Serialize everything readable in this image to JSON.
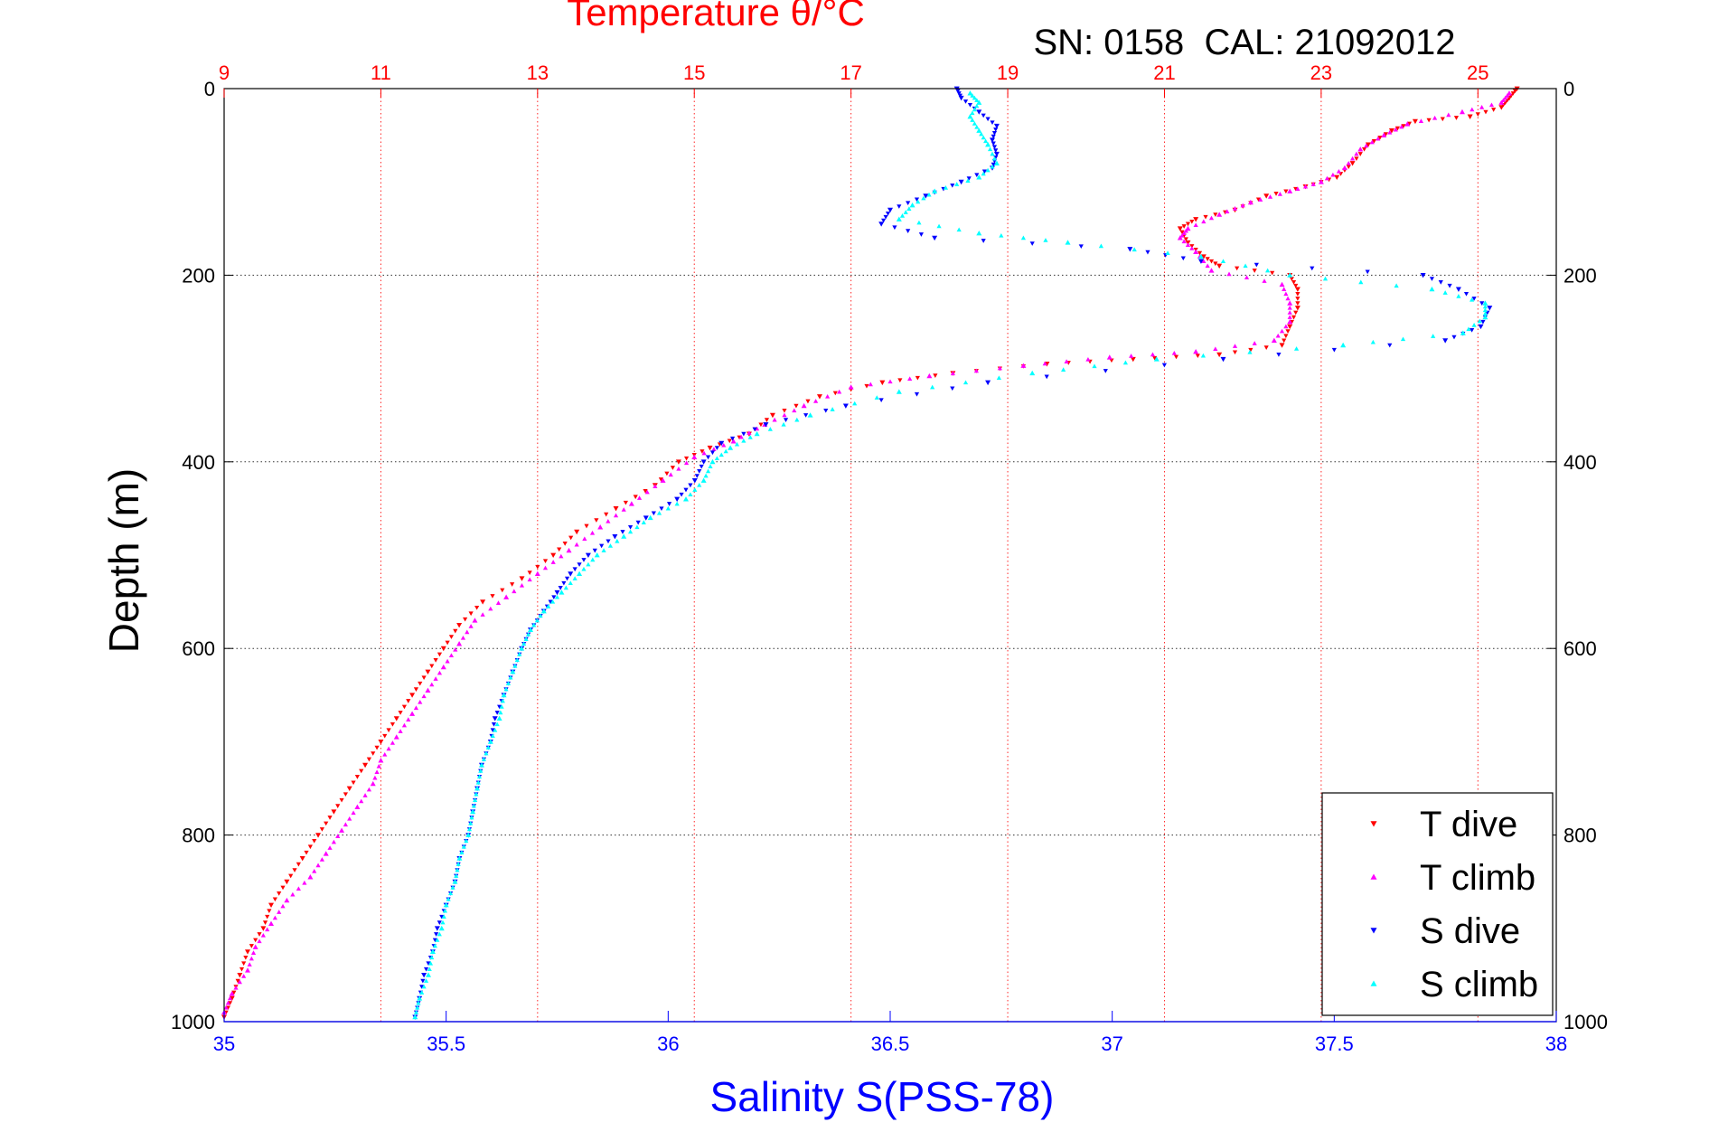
{
  "chart_data": {
    "type": "scatter",
    "title": "Temperature θ/°C",
    "subtitle": "SN: 0158  CAL: 21092012",
    "ylabel": "Depth (m)",
    "xlabel_bottom": "Salinity S(PSS-78)",
    "xlabel_top": "Temperature θ/°C",
    "ylim": [
      0,
      1000
    ],
    "y_inverted": true,
    "y_ticks": [
      0,
      200,
      400,
      600,
      800,
      1000
    ],
    "x_bottom_lim": [
      35,
      38
    ],
    "x_bottom_ticks": [
      35,
      35.5,
      36,
      36.5,
      37,
      37.5,
      38
    ],
    "x_top_lim": [
      9,
      26
    ],
    "x_top_ticks": [
      9,
      11,
      13,
      15,
      17,
      19,
      21,
      23,
      25
    ],
    "grid": true,
    "legend_position": "bottom-right",
    "colors": {
      "temperature_axis": "#ff0000",
      "salinity_axis": "#0000ff",
      "grid_horizontal": "#000000",
      "grid_vertical": "#ff0000"
    },
    "series": [
      {
        "name": "T dive",
        "axis": "temperature",
        "marker": "triangle-down",
        "color": "#ff0000",
        "points": [
          [
            25.5,
            0
          ],
          [
            25.4,
            10
          ],
          [
            25.3,
            20
          ],
          [
            24.9,
            30
          ],
          [
            24.2,
            35
          ],
          [
            23.9,
            45
          ],
          [
            23.6,
            60
          ],
          [
            23.4,
            80
          ],
          [
            23.2,
            95
          ],
          [
            22.8,
            105
          ],
          [
            22.3,
            115
          ],
          [
            21.9,
            130
          ],
          [
            21.4,
            140
          ],
          [
            21.2,
            150
          ],
          [
            21.3,
            165
          ],
          [
            21.5,
            180
          ],
          [
            21.7,
            190
          ],
          [
            22.6,
            200
          ],
          [
            22.7,
            215
          ],
          [
            22.7,
            235
          ],
          [
            22.6,
            255
          ],
          [
            22.5,
            275
          ],
          [
            21.7,
            285
          ],
          [
            20.6,
            290
          ],
          [
            19.5,
            295
          ],
          [
            18.3,
            305
          ],
          [
            17.4,
            315
          ],
          [
            16.6,
            330
          ],
          [
            16.0,
            350
          ],
          [
            15.7,
            370
          ],
          [
            15.2,
            385
          ],
          [
            14.8,
            400
          ],
          [
            14.5,
            425
          ],
          [
            14.0,
            450
          ],
          [
            13.5,
            475
          ],
          [
            13.2,
            500
          ],
          [
            12.8,
            525
          ],
          [
            12.3,
            550
          ],
          [
            12.0,
            575
          ],
          [
            11.8,
            600
          ],
          [
            11.6,
            625
          ],
          [
            11.4,
            650
          ],
          [
            11.2,
            675
          ],
          [
            11.0,
            700
          ],
          [
            10.8,
            725
          ],
          [
            10.6,
            750
          ],
          [
            10.4,
            775
          ],
          [
            10.2,
            800
          ],
          [
            10.0,
            825
          ],
          [
            9.8,
            850
          ],
          [
            9.6,
            875
          ],
          [
            9.5,
            900
          ],
          [
            9.3,
            925
          ],
          [
            9.2,
            950
          ],
          [
            9.1,
            975
          ],
          [
            9.0,
            995
          ]
        ]
      },
      {
        "name": "T climb",
        "axis": "temperature",
        "marker": "triangle-up",
        "color": "#ff00ff",
        "points": [
          [
            25.4,
            5
          ],
          [
            25.3,
            15
          ],
          [
            24.8,
            25
          ],
          [
            24.1,
            38
          ],
          [
            23.8,
            50
          ],
          [
            23.5,
            65
          ],
          [
            23.3,
            85
          ],
          [
            23.0,
            100
          ],
          [
            22.6,
            110
          ],
          [
            22.1,
            122
          ],
          [
            21.7,
            135
          ],
          [
            21.3,
            150
          ],
          [
            21.2,
            160
          ],
          [
            21.4,
            175
          ],
          [
            21.6,
            195
          ],
          [
            22.5,
            210
          ],
          [
            22.6,
            230
          ],
          [
            22.6,
            250
          ],
          [
            22.4,
            270
          ],
          [
            21.4,
            282
          ],
          [
            20.3,
            288
          ],
          [
            19.2,
            297
          ],
          [
            18.0,
            308
          ],
          [
            17.0,
            320
          ],
          [
            16.4,
            340
          ],
          [
            15.9,
            360
          ],
          [
            15.5,
            378
          ],
          [
            15.0,
            395
          ],
          [
            14.6,
            420
          ],
          [
            14.2,
            445
          ],
          [
            13.8,
            470
          ],
          [
            13.4,
            495
          ],
          [
            13.0,
            520
          ],
          [
            12.6,
            545
          ],
          [
            12.2,
            570
          ],
          [
            12.0,
            595
          ],
          [
            11.8,
            620
          ],
          [
            11.6,
            645
          ],
          [
            11.4,
            670
          ],
          [
            11.2,
            695
          ],
          [
            11.0,
            720
          ],
          [
            10.9,
            745
          ],
          [
            10.7,
            770
          ],
          [
            10.5,
            795
          ],
          [
            10.3,
            820
          ],
          [
            10.1,
            845
          ],
          [
            9.8,
            870
          ],
          [
            9.6,
            895
          ],
          [
            9.4,
            920
          ],
          [
            9.3,
            945
          ],
          [
            9.1,
            970
          ],
          [
            9.0,
            990
          ]
        ]
      },
      {
        "name": "S dive",
        "axis": "salinity",
        "marker": "triangle-down",
        "color": "#0000ff",
        "points": [
          [
            36.65,
            0
          ],
          [
            36.66,
            10
          ],
          [
            36.7,
            25
          ],
          [
            36.74,
            40
          ],
          [
            36.73,
            55
          ],
          [
            36.74,
            70
          ],
          [
            36.73,
            85
          ],
          [
            36.66,
            100
          ],
          [
            36.58,
            115
          ],
          [
            36.5,
            130
          ],
          [
            36.48,
            145
          ],
          [
            36.6,
            160
          ],
          [
            37.04,
            172
          ],
          [
            37.2,
            185
          ],
          [
            37.7,
            200
          ],
          [
            37.78,
            215
          ],
          [
            37.85,
            235
          ],
          [
            37.83,
            255
          ],
          [
            37.75,
            270
          ],
          [
            37.25,
            290
          ],
          [
            36.72,
            315
          ],
          [
            36.4,
            340
          ],
          [
            36.22,
            360
          ],
          [
            36.12,
            380
          ],
          [
            36.08,
            400
          ],
          [
            36.06,
            420
          ],
          [
            36.02,
            440
          ],
          [
            35.95,
            460
          ],
          [
            35.88,
            480
          ],
          [
            35.82,
            500
          ],
          [
            35.78,
            520
          ],
          [
            35.75,
            540
          ],
          [
            35.72,
            560
          ],
          [
            35.69,
            580
          ],
          [
            35.67,
            600
          ],
          [
            35.65,
            625
          ],
          [
            35.63,
            650
          ],
          [
            35.61,
            675
          ],
          [
            35.6,
            700
          ],
          [
            35.58,
            725
          ],
          [
            35.57,
            750
          ],
          [
            35.56,
            775
          ],
          [
            35.55,
            800
          ],
          [
            35.53,
            825
          ],
          [
            35.52,
            850
          ],
          [
            35.5,
            875
          ],
          [
            35.48,
            900
          ],
          [
            35.47,
            925
          ],
          [
            35.45,
            950
          ],
          [
            35.44,
            975
          ],
          [
            35.43,
            995
          ]
        ]
      },
      {
        "name": "S climb",
        "axis": "salinity",
        "marker": "triangle-up",
        "color": "#00ffff",
        "points": [
          [
            36.68,
            5
          ],
          [
            36.7,
            15
          ],
          [
            36.68,
            30
          ],
          [
            36.7,
            45
          ],
          [
            36.72,
            60
          ],
          [
            36.74,
            80
          ],
          [
            36.7,
            95
          ],
          [
            36.6,
            110
          ],
          [
            36.55,
            125
          ],
          [
            36.52,
            140
          ],
          [
            36.7,
            155
          ],
          [
            36.9,
            165
          ],
          [
            37.2,
            180
          ],
          [
            37.4,
            200
          ],
          [
            37.72,
            215
          ],
          [
            37.84,
            230
          ],
          [
            37.84,
            245
          ],
          [
            37.79,
            262
          ],
          [
            37.52,
            275
          ],
          [
            37.1,
            290
          ],
          [
            36.82,
            305
          ],
          [
            36.52,
            325
          ],
          [
            36.32,
            350
          ],
          [
            36.2,
            370
          ],
          [
            36.14,
            385
          ],
          [
            36.1,
            400
          ],
          [
            36.08,
            420
          ],
          [
            36.04,
            440
          ],
          [
            35.96,
            460
          ],
          [
            35.9,
            480
          ],
          [
            35.84,
            500
          ],
          [
            35.8,
            520
          ],
          [
            35.76,
            540
          ],
          [
            35.72,
            560
          ],
          [
            35.69,
            580
          ],
          [
            35.67,
            600
          ],
          [
            35.65,
            625
          ],
          [
            35.63,
            650
          ],
          [
            35.62,
            675
          ],
          [
            35.6,
            700
          ],
          [
            35.58,
            725
          ],
          [
            35.57,
            750
          ],
          [
            35.56,
            775
          ],
          [
            35.55,
            800
          ],
          [
            35.53,
            825
          ],
          [
            35.52,
            850
          ],
          [
            35.5,
            875
          ],
          [
            35.49,
            900
          ],
          [
            35.47,
            925
          ],
          [
            35.46,
            950
          ],
          [
            35.44,
            975
          ],
          [
            35.43,
            995
          ]
        ]
      }
    ]
  }
}
